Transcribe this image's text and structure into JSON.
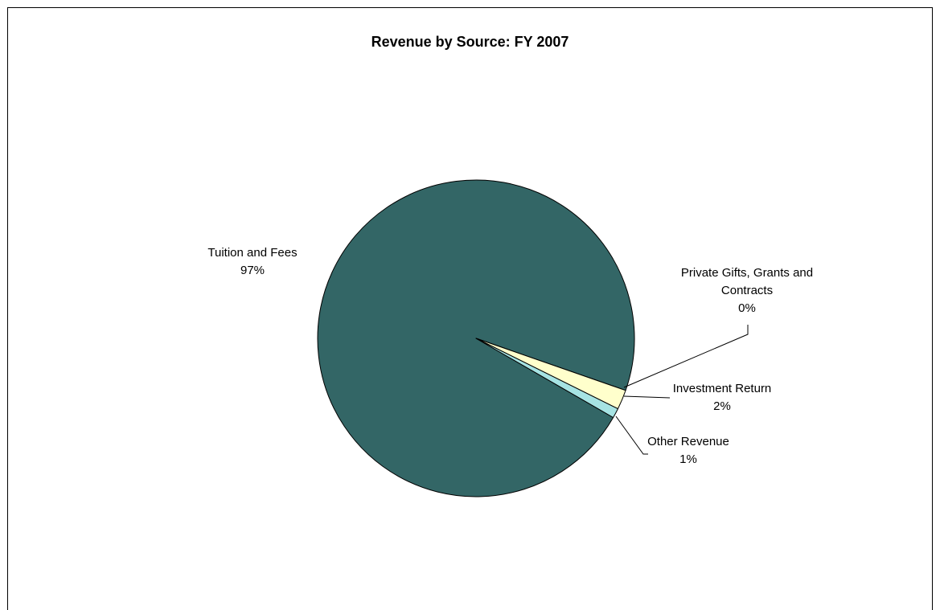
{
  "chart_data": {
    "type": "pie",
    "title": "Revenue by Source:  FY 2007",
    "categories": [
      "Tuition and Fees",
      "Private Gifts, Grants and Contracts",
      "Investment Return",
      "Other Revenue"
    ],
    "values": [
      97,
      0,
      2,
      1
    ],
    "value_labels": [
      "97%",
      "0%",
      "2%",
      "1%"
    ],
    "colors": [
      "#336666",
      "#993366",
      "#FFFFCC",
      "#A6E3E3"
    ]
  }
}
